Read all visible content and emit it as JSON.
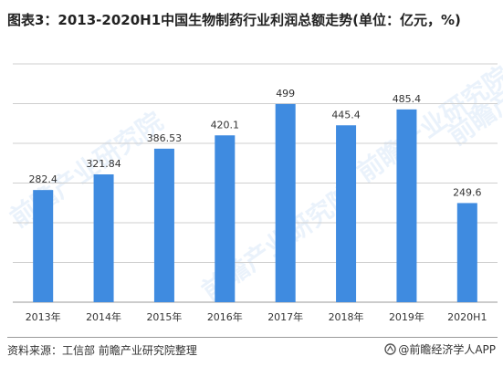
{
  "title": "图表3：2013-2020H1中国生物制药行业利润总额走势(单位：亿元，%)",
  "source": "资料来源：工信部 前瞻产业研究院整理",
  "brand": "@前瞻经济学人APP",
  "watermark_text": "前瞻产业研究院",
  "colors": {
    "bar": "#3f8be0",
    "grid": "#cfcfcf",
    "axis": "#9a9a9a"
  },
  "chart_data": {
    "type": "bar",
    "categories": [
      "2013年",
      "2014年",
      "2015年",
      "2016年",
      "2017年",
      "2018年",
      "2019年",
      "2020H1"
    ],
    "values": [
      282.4,
      321.84,
      386.53,
      420.1,
      499,
      445.4,
      485.4,
      249.6
    ],
    "value_labels": [
      "282.4",
      "321.84",
      "386.53",
      "420.1",
      "499",
      "445.4",
      "485.4",
      "249.6"
    ],
    "ylim": [
      0,
      600
    ],
    "grid": true
  }
}
